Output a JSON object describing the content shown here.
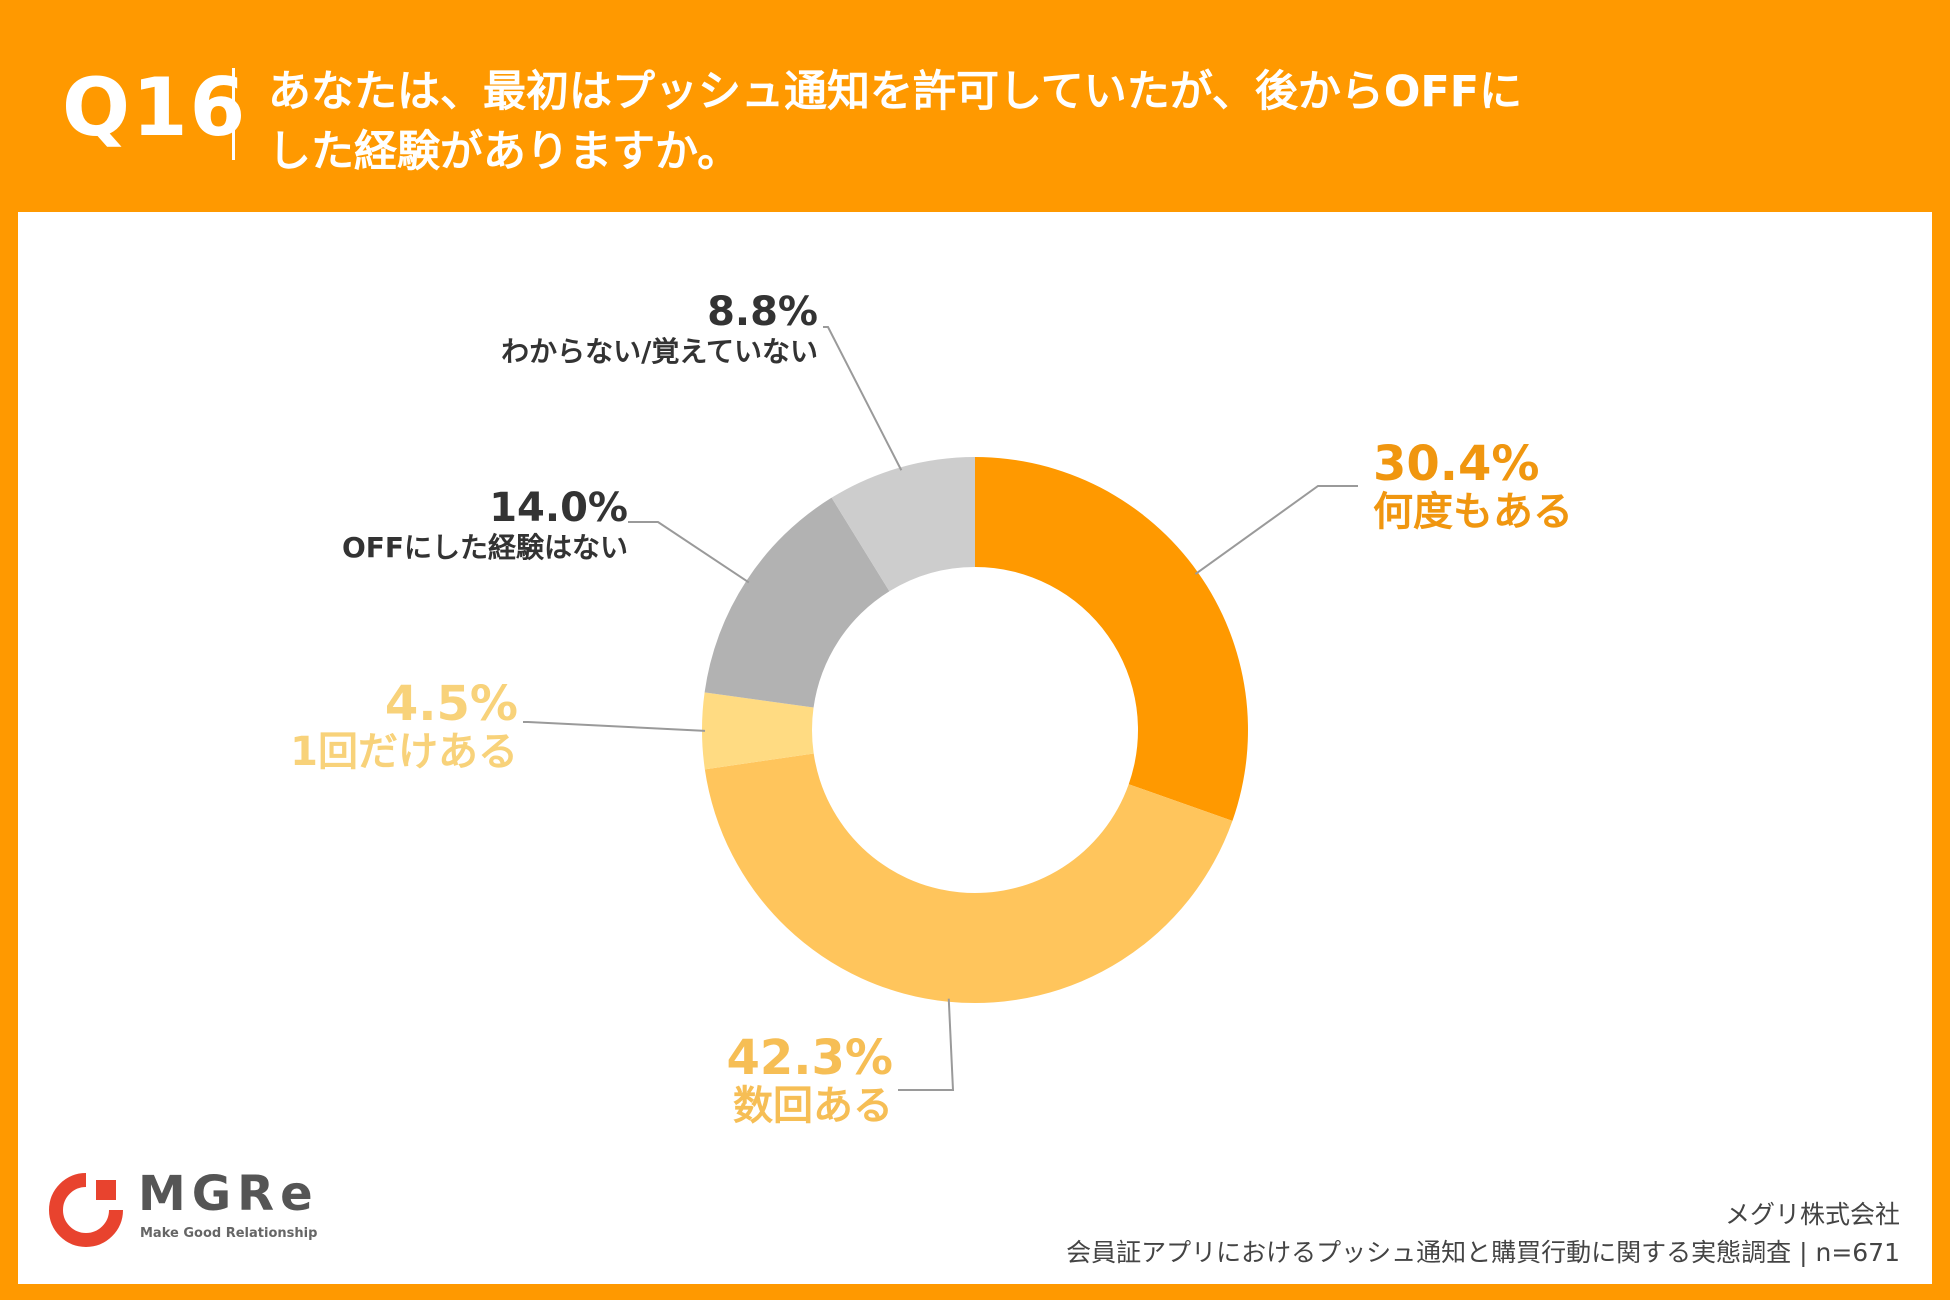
{
  "header": {
    "question_number": "Q16",
    "question_line1": "あなたは、最初はプッシュ通知を許可していたが、後からOFFに",
    "question_line2": "した経験がありますか。"
  },
  "chart_data": {
    "type": "pie",
    "style": "donut",
    "title": "あなたは、最初はプッシュ通知を許可していたが、後からOFFにした経験がありますか。",
    "unit": "%",
    "slices": [
      {
        "label": "何度もある",
        "value": 30.4,
        "display": "30.4%",
        "color": "#FF9900"
      },
      {
        "label": "数回ある",
        "value": 42.3,
        "display": "42.3%",
        "color": "#FFC55C"
      },
      {
        "label": "1回だけある",
        "value": 4.5,
        "display": "4.5%",
        "color": "#FFDB82"
      },
      {
        "label": "OFFにした経験はない",
        "value": 14.0,
        "display": "14.0%",
        "color": "#B2B2B2"
      },
      {
        "label": "わからない/覚えていない",
        "value": 8.8,
        "display": "8.8%",
        "color": "#CDCDCD"
      }
    ],
    "label_colors": {
      "何度もある": "#F0960F",
      "数回ある": "#F6BE55",
      "1回だけある": "#F8D27A",
      "OFFにした経験はない": "#333333",
      "わからない/覚えていない": "#333333"
    },
    "leader_line_color": "#9A9A9A"
  },
  "logo": {
    "text": "MGRe",
    "tagline": "Make Good Relationship",
    "color": "#E8432E"
  },
  "footer": {
    "company": "メグリ株式会社",
    "survey": "会員証アプリにおけるプッシュ通知と購買行動に関する実態調査 | n=671"
  }
}
